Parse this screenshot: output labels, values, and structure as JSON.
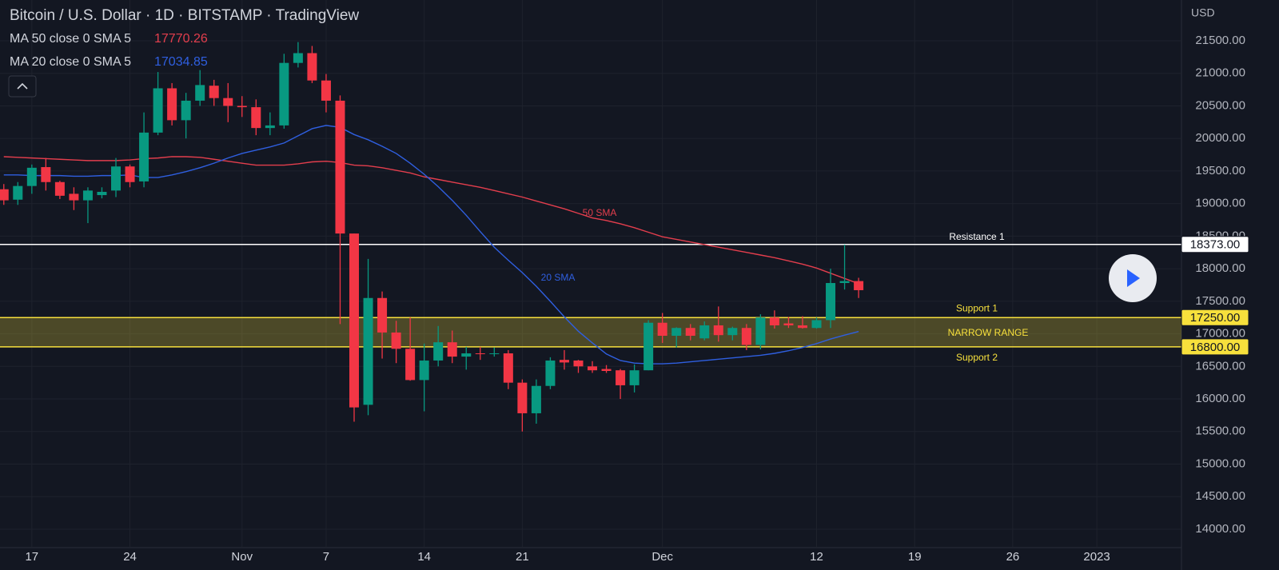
{
  "chart_data": {
    "type": "candlestick",
    "title": "Bitcoin / U.S. Dollar · 1D · BITSTAMP · TradingView",
    "y_axis_label": "USD",
    "categories": [
      null,
      null,
      "17",
      null,
      null,
      null,
      null,
      null,
      null,
      "24",
      null,
      null,
      null,
      null,
      null,
      null,
      null,
      "Nov",
      null,
      null,
      null,
      null,
      null,
      "7",
      null,
      null,
      null,
      null,
      null,
      null,
      "14",
      null,
      null,
      null,
      null,
      null,
      null,
      "21",
      null,
      null,
      null,
      null,
      null,
      null,
      null,
      null,
      null,
      "Dec",
      null,
      null,
      null,
      null,
      null,
      null,
      null,
      null,
      null,
      null,
      "12",
      null,
      null,
      null,
      null,
      null,
      null,
      "19",
      null,
      null,
      null,
      null,
      null,
      null,
      "26",
      null,
      null,
      null,
      null,
      null,
      "2023",
      null,
      null,
      null,
      null,
      null
    ],
    "open": [
      19220,
      19060,
      19270,
      19560,
      19330,
      19150,
      19050,
      19130,
      19200,
      19570,
      19340,
      20090,
      20770,
      20280,
      20580,
      20810,
      20620,
      20500,
      20480,
      20160,
      20200,
      21160,
      21310,
      20890,
      20580,
      18540,
      15910,
      17550,
      17020,
      16770,
      16290,
      16590,
      16870,
      16650,
      16700,
      16690,
      16700,
      16250,
      15780,
      16200,
      16600,
      16590,
      16500,
      16460,
      16440,
      16210,
      16440,
      17170,
      16970,
      17090,
      16930,
      17130,
      16980,
      17090,
      16830,
      17250,
      17160,
      17130,
      17090,
      17210,
      17780,
      17810,
      null,
      null,
      null,
      null,
      null,
      null,
      null,
      null,
      null,
      null,
      null,
      null,
      null,
      null,
      null,
      null,
      null,
      null,
      null,
      null,
      null,
      null
    ],
    "high": [
      19300,
      19330,
      19600,
      19700,
      19350,
      19250,
      19250,
      19250,
      19700,
      19600,
      20400,
      21020,
      20850,
      20700,
      21050,
      20900,
      20850,
      20650,
      20600,
      20400,
      21300,
      21480,
      21420,
      20990,
      20660,
      18540,
      18150,
      17650,
      17200,
      17250,
      16850,
      17120,
      17050,
      16800,
      16800,
      16790,
      16750,
      16300,
      16300,
      16640,
      16750,
      16600,
      16580,
      16520,
      16460,
      16530,
      17210,
      17320,
      17100,
      17150,
      17190,
      17420,
      17110,
      17150,
      17300,
      17360,
      17260,
      17270,
      17250,
      18000,
      18370,
      17860,
      null,
      null,
      null,
      null,
      null,
      null,
      null,
      null,
      null,
      null,
      null,
      null,
      null,
      null,
      null,
      null,
      null,
      null,
      null,
      null,
      null,
      null
    ],
    "low": [
      18980,
      18980,
      19150,
      19200,
      19070,
      18900,
      18700,
      19080,
      19100,
      19250,
      19250,
      20050,
      20200,
      20000,
      20500,
      20500,
      20250,
      20330,
      20050,
      20050,
      20150,
      21090,
      20850,
      20400,
      17150,
      15650,
      15750,
      16620,
      16550,
      16280,
      15810,
      16500,
      16550,
      16450,
      16600,
      16650,
      16150,
      15500,
      15620,
      16150,
      16450,
      16400,
      16400,
      16400,
      16000,
      16100,
      16440,
      16860,
      16790,
      16900,
      16900,
      16880,
      16900,
      16750,
      16760,
      17080,
      17090,
      17080,
      17080,
      17090,
      17680,
      17550,
      null,
      null,
      null,
      null,
      null,
      null,
      null,
      null,
      null,
      null,
      null,
      null,
      null,
      null,
      null,
      null,
      null,
      null,
      null,
      null,
      null,
      null
    ],
    "close": [
      19050,
      19270,
      19550,
      19330,
      19120,
      19050,
      19200,
      19180,
      19570,
      19330,
      20090,
      20770,
      20280,
      20580,
      20820,
      20620,
      20500,
      20480,
      20160,
      20200,
      21160,
      21310,
      20890,
      20580,
      18540,
      15870,
      17550,
      17020,
      16770,
      16290,
      16590,
      16870,
      16650,
      16700,
      16690,
      16700,
      16250,
      15780,
      16200,
      16590,
      16560,
      16500,
      16440,
      16430,
      16210,
      16440,
      17170,
      16970,
      17090,
      16970,
      17130,
      16980,
      17090,
      16830,
      17250,
      17130,
      17130,
      17090,
      17210,
      17780,
      17810,
      17670,
      null,
      null,
      null,
      null,
      null,
      null,
      null,
      null,
      null,
      null,
      null,
      null,
      null,
      null,
      null,
      null,
      null,
      null,
      null,
      null,
      null,
      null
    ],
    "up_color": "#089981",
    "down_color": "#f23645",
    "series": [
      {
        "name": "MA 50 close 0 SMA 5",
        "color": "#e33e4d",
        "values": [
          19720,
          19710,
          19700,
          19690,
          19680,
          19670,
          19660,
          19660,
          19660,
          19670,
          19690,
          19700,
          19720,
          19720,
          19710,
          19680,
          19650,
          19620,
          19590,
          19590,
          19590,
          19610,
          19640,
          19650,
          19630,
          19590,
          19580,
          19550,
          19510,
          19470,
          19410,
          19370,
          19330,
          19290,
          19250,
          19200,
          19150,
          19100,
          19040,
          18980,
          18920,
          18850,
          18780,
          18740,
          18690,
          18630,
          18560,
          18490,
          18450,
          18410,
          18370,
          18330,
          18290,
          18250,
          18210,
          18170,
          18120,
          18070,
          18010,
          17930,
          17850,
          17770.26,
          null,
          null,
          null,
          null,
          null,
          null,
          null,
          null,
          null,
          null,
          null,
          null,
          null,
          null,
          null,
          null,
          null,
          null,
          null,
          null,
          null,
          null
        ]
      },
      {
        "name": "MA 20 close 0 SMA 5",
        "color": "#2f5fe0",
        "values": [
          19440,
          19440,
          19430,
          19430,
          19430,
          19420,
          19420,
          19430,
          19430,
          19440,
          19400,
          19400,
          19440,
          19490,
          19550,
          19620,
          19700,
          19770,
          19820,
          19870,
          19930,
          20040,
          20150,
          20200,
          20170,
          20060,
          19980,
          19880,
          19770,
          19620,
          19450,
          19260,
          19050,
          18820,
          18570,
          18330,
          18130,
          17940,
          17730,
          17500,
          17260,
          17040,
          16860,
          16690,
          16590,
          16550,
          16540,
          16540,
          16550,
          16570,
          16590,
          16610,
          16630,
          16650,
          16670,
          16700,
          16740,
          16790,
          16850,
          16920,
          16980,
          17034.85,
          null,
          null,
          null,
          null,
          null,
          null,
          null,
          null,
          null,
          null,
          null,
          null,
          null,
          null,
          null,
          null,
          null,
          null,
          null,
          null,
          null,
          null
        ]
      }
    ],
    "levels": [
      {
        "name": "Resistance 1",
        "value": 18373,
        "value_label": "18373.00",
        "color": "#ffffff"
      },
      {
        "name": "Support 1",
        "value": 17250,
        "value_label": "17250.00",
        "color": "#f7e03c"
      },
      {
        "name": "Support 2",
        "value": 16800,
        "value_label": "16800.00",
        "color": "#f7e03c"
      }
    ],
    "annotations": [
      "50 SMA",
      "20 SMA",
      "NARROW RANGE"
    ],
    "ylim": [
      13717,
      22126
    ],
    "yticks": [
      {
        "value": 14000,
        "label": "14000.00"
      },
      {
        "value": 14500,
        "label": "14500.00"
      },
      {
        "value": 15000,
        "label": "15000.00"
      },
      {
        "value": 15500,
        "label": "15500.00"
      },
      {
        "value": 16000,
        "label": "16000.00"
      },
      {
        "value": 16500,
        "label": "16500.00"
      },
      {
        "value": 17000,
        "label": "17000.00"
      },
      {
        "value": 17500,
        "label": "17500.00"
      },
      {
        "value": 18000,
        "label": "18000.00"
      },
      {
        "value": 18500,
        "label": "18500.00"
      },
      {
        "value": 19000,
        "label": "19000.00"
      },
      {
        "value": 19500,
        "label": "19500.00"
      },
      {
        "value": 20000,
        "label": "20000.00"
      },
      {
        "value": 20500,
        "label": "20500.00"
      },
      {
        "value": 21000,
        "label": "21000.00"
      },
      {
        "value": 21500,
        "label": "21500.00"
      }
    ],
    "grid": true
  }
}
